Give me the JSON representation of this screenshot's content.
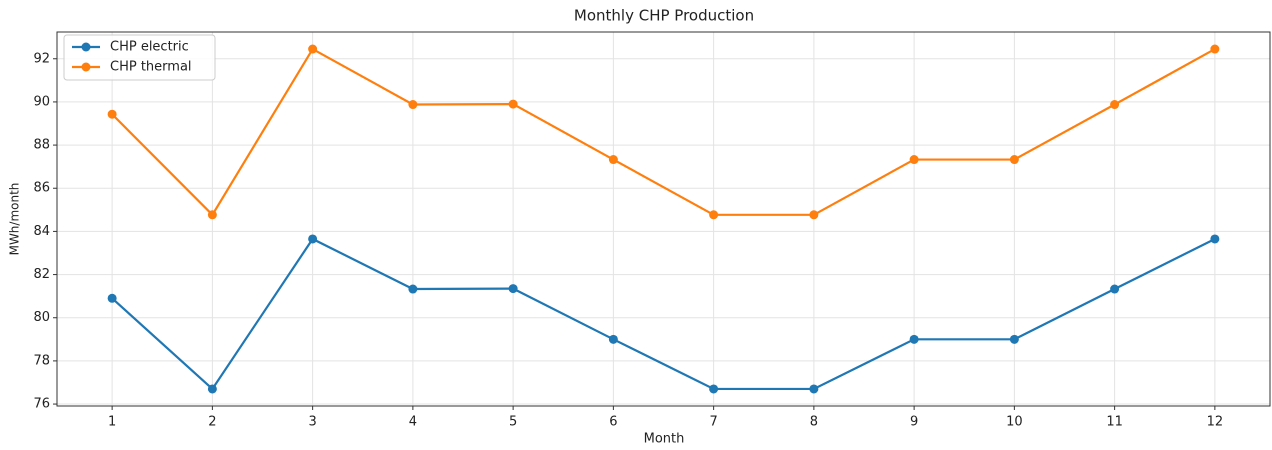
{
  "chart_data": {
    "type": "line",
    "title": "Monthly CHP Production",
    "xlabel": "Month",
    "ylabel": "MWh/month",
    "x": [
      1,
      2,
      3,
      4,
      5,
      6,
      7,
      8,
      9,
      10,
      11,
      12
    ],
    "series": [
      {
        "name": "CHP electric",
        "color": "#1f77b4",
        "values": [
          80.9,
          76.7,
          83.65,
          81.33,
          81.35,
          79.0,
          76.7,
          76.7,
          79.0,
          79.0,
          81.33,
          83.65
        ]
      },
      {
        "name": "CHP thermal",
        "color": "#ff7f0e",
        "values": [
          89.43,
          84.77,
          92.45,
          89.88,
          89.9,
          87.33,
          84.77,
          84.77,
          87.33,
          87.33,
          89.88,
          92.45
        ]
      }
    ],
    "xlim": [
      0.45,
      12.55
    ],
    "xticks": [
      1,
      2,
      3,
      4,
      5,
      6,
      7,
      8,
      9,
      10,
      11,
      12
    ],
    "ylim": [
      75.91,
      93.24
    ],
    "yticks": [
      76,
      78,
      80,
      82,
      84,
      86,
      88,
      90,
      92
    ],
    "grid": true,
    "legend": "upper left"
  }
}
